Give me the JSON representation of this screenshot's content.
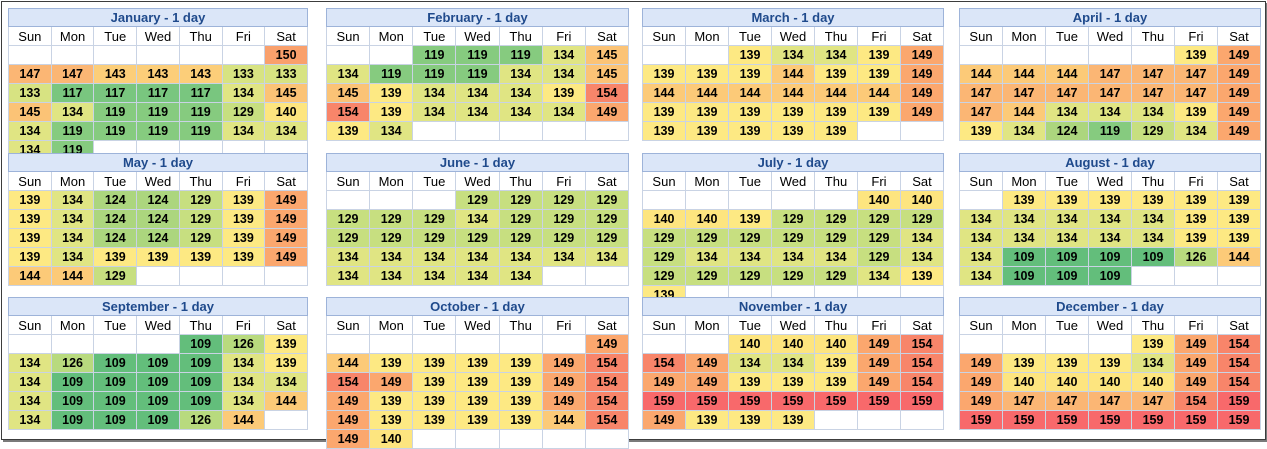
{
  "days": [
    "Sun",
    "Mon",
    "Tue",
    "Wed",
    "Thu",
    "Fri",
    "Sat"
  ],
  "colors": {
    "109": "#63be7b",
    "117": "#79c67f",
    "119": "#86cb7f",
    "124": "#acd67e",
    "126": "#b8da7e",
    "129": "#c7df80",
    "133": "#d7e382",
    "134": "#e0e583",
    "139": "#fde983",
    "140": "#fde57f",
    "143": "#fcce79",
    "144": "#fcca78",
    "145": "#fbc376",
    "147": "#fbb674",
    "149": "#fba76e",
    "150": "#f9a06c",
    "154": "#f8856a",
    "159": "#f8696b"
  },
  "months": [
    {
      "title": "January - 1 day",
      "weeks": [
        [
          "",
          "",
          "",
          "",
          "",
          "",
          "150"
        ],
        [
          "147",
          "147",
          "143",
          "143",
          "143",
          "133",
          "133"
        ],
        [
          "133",
          "117",
          "117",
          "117",
          "117",
          "134",
          "145"
        ],
        [
          "145",
          "134",
          "119",
          "119",
          "119",
          "129",
          "140"
        ],
        [
          "134",
          "119",
          "119",
          "119",
          "119",
          "134",
          "134"
        ],
        [
          "134",
          "119",
          "",
          "",
          "",
          "",
          ""
        ]
      ]
    },
    {
      "title": "February - 1 day",
      "weeks": [
        [
          "",
          "",
          "119",
          "119",
          "119",
          "134",
          "145"
        ],
        [
          "134",
          "119",
          "119",
          "119",
          "134",
          "134",
          "145"
        ],
        [
          "145",
          "139",
          "134",
          "134",
          "134",
          "139",
          "154"
        ],
        [
          "154",
          "139",
          "134",
          "134",
          "134",
          "134",
          "149"
        ],
        [
          "139",
          "134",
          "",
          "",
          "",
          "",
          ""
        ]
      ]
    },
    {
      "title": "March - 1 day",
      "weeks": [
        [
          "",
          "",
          "139",
          "134",
          "134",
          "139",
          "149"
        ],
        [
          "139",
          "139",
          "139",
          "144",
          "139",
          "139",
          "149"
        ],
        [
          "144",
          "144",
          "144",
          "144",
          "144",
          "144",
          "149"
        ],
        [
          "139",
          "139",
          "139",
          "139",
          "139",
          "139",
          "149"
        ],
        [
          "139",
          "139",
          "139",
          "139",
          "139",
          "",
          ""
        ]
      ]
    },
    {
      "title": "April - 1 day",
      "weeks": [
        [
          "",
          "",
          "",
          "",
          "",
          "139",
          "149"
        ],
        [
          "144",
          "144",
          "144",
          "147",
          "147",
          "147",
          "149"
        ],
        [
          "147",
          "147",
          "147",
          "147",
          "147",
          "147",
          "149"
        ],
        [
          "147",
          "144",
          "134",
          "134",
          "134",
          "139",
          "149"
        ],
        [
          "139",
          "134",
          "124",
          "119",
          "129",
          "134",
          "149"
        ]
      ]
    },
    {
      "title": "May - 1 day",
      "weeks": [
        [
          "139",
          "134",
          "124",
          "124",
          "129",
          "139",
          "149"
        ],
        [
          "139",
          "134",
          "124",
          "124",
          "129",
          "139",
          "149"
        ],
        [
          "139",
          "134",
          "124",
          "124",
          "129",
          "139",
          "149"
        ],
        [
          "139",
          "134",
          "139",
          "139",
          "139",
          "139",
          "149"
        ],
        [
          "144",
          "144",
          "129",
          "",
          "",
          "",
          ""
        ]
      ]
    },
    {
      "title": "June - 1 day",
      "weeks": [
        [
          "",
          "",
          "",
          "129",
          "129",
          "129",
          "129"
        ],
        [
          "129",
          "129",
          "129",
          "134",
          "129",
          "129",
          "129"
        ],
        [
          "129",
          "129",
          "129",
          "129",
          "129",
          "129",
          "129"
        ],
        [
          "134",
          "134",
          "134",
          "134",
          "134",
          "134",
          "134"
        ],
        [
          "134",
          "134",
          "134",
          "134",
          "134",
          "",
          ""
        ]
      ]
    },
    {
      "title": "July - 1 day",
      "weeks": [
        [
          "",
          "",
          "",
          "",
          "",
          "140",
          "140"
        ],
        [
          "140",
          "140",
          "139",
          "129",
          "129",
          "129",
          "129"
        ],
        [
          "129",
          "129",
          "129",
          "129",
          "129",
          "129",
          "134"
        ],
        [
          "129",
          "134",
          "134",
          "134",
          "134",
          "129",
          "134"
        ],
        [
          "129",
          "129",
          "129",
          "129",
          "129",
          "134",
          "139"
        ],
        [
          "139",
          "",
          "",
          "",
          "",
          "",
          ""
        ]
      ]
    },
    {
      "title": "August - 1 day",
      "weeks": [
        [
          "",
          "139",
          "139",
          "139",
          "139",
          "139",
          "139"
        ],
        [
          "134",
          "134",
          "134",
          "134",
          "134",
          "139",
          "139"
        ],
        [
          "134",
          "134",
          "134",
          "134",
          "134",
          "139",
          "139"
        ],
        [
          "134",
          "109",
          "109",
          "109",
          "109",
          "126",
          "144"
        ],
        [
          "134",
          "109",
          "109",
          "109",
          "",
          "",
          ""
        ]
      ]
    },
    {
      "title": "September - 1 day",
      "weeks": [
        [
          "",
          "",
          "",
          "",
          "109",
          "126",
          "139"
        ],
        [
          "134",
          "126",
          "109",
          "109",
          "109",
          "134",
          "139"
        ],
        [
          "134",
          "109",
          "109",
          "109",
          "109",
          "134",
          "134"
        ],
        [
          "134",
          "109",
          "109",
          "109",
          "109",
          "134",
          "144"
        ],
        [
          "134",
          "109",
          "109",
          "109",
          "126",
          "144",
          ""
        ]
      ]
    },
    {
      "title": "October - 1 day",
      "weeks": [
        [
          "",
          "",
          "",
          "",
          "",
          "",
          "149"
        ],
        [
          "144",
          "139",
          "139",
          "139",
          "139",
          "149",
          "154"
        ],
        [
          "154",
          "149",
          "139",
          "139",
          "139",
          "149",
          "154"
        ],
        [
          "149",
          "139",
          "139",
          "139",
          "139",
          "149",
          "154"
        ],
        [
          "149",
          "139",
          "139",
          "139",
          "139",
          "144",
          "154"
        ],
        [
          "149",
          "140",
          "",
          "",
          "",
          "",
          ""
        ]
      ]
    },
    {
      "title": "November - 1 day",
      "weeks": [
        [
          "",
          "",
          "140",
          "140",
          "140",
          "149",
          "154"
        ],
        [
          "154",
          "149",
          "134",
          "134",
          "139",
          "149",
          "154"
        ],
        [
          "149",
          "149",
          "139",
          "139",
          "139",
          "149",
          "154"
        ],
        [
          "159",
          "159",
          "159",
          "159",
          "159",
          "159",
          "159"
        ],
        [
          "149",
          "139",
          "139",
          "139",
          "",
          "",
          ""
        ]
      ]
    },
    {
      "title": "December - 1 day",
      "weeks": [
        [
          "",
          "",
          "",
          "",
          "139",
          "149",
          "154"
        ],
        [
          "149",
          "139",
          "139",
          "139",
          "134",
          "149",
          "154"
        ],
        [
          "149",
          "140",
          "140",
          "140",
          "140",
          "149",
          "154"
        ],
        [
          "149",
          "147",
          "147",
          "147",
          "147",
          "154",
          "159"
        ],
        [
          "159",
          "159",
          "159",
          "159",
          "159",
          "159",
          "159"
        ]
      ]
    }
  ]
}
